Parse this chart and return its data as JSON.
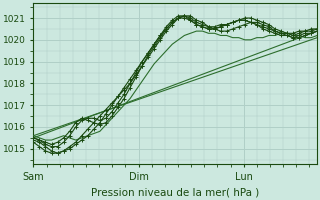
{
  "title": "Pression niveau de la mer( hPa )",
  "ylabel_ticks": [
    1015,
    1016,
    1017,
    1018,
    1019,
    1020,
    1021
  ],
  "ylim": [
    1014.3,
    1021.7
  ],
  "bg_color": "#cce8df",
  "grid_color": "#b0cfc7",
  "line_color": "#2d6e2d",
  "dark_line_color": "#1a4a10",
  "text_color": "#1a4a10",
  "day_labels": [
    "Sam",
    "Dim",
    "Lun"
  ],
  "day_positions": [
    0.0,
    1.0,
    2.0
  ],
  "xlim": [
    0.0,
    2.7
  ],
  "n_points": 48,
  "series": [
    [
      1015.6,
      1015.5,
      1015.4,
      1015.4,
      1015.5,
      1015.6,
      1015.5,
      1015.4,
      1015.5,
      1015.6,
      1015.7,
      1015.8,
      1016.1,
      1016.4,
      1016.7,
      1017.0,
      1017.3,
      1017.7,
      1018.1,
      1018.5,
      1018.9,
      1019.2,
      1019.5,
      1019.8,
      1020.0,
      1020.2,
      1020.3,
      1020.4,
      1020.4,
      1020.3,
      1020.3,
      1020.2,
      1020.2,
      1020.1,
      1020.1,
      1020.0,
      1020.0,
      1020.1,
      1020.1,
      1020.2,
      1020.2,
      1020.3,
      1020.3,
      1020.2,
      1020.2,
      1020.1,
      1020.1,
      1020.2
    ],
    [
      1015.4,
      1015.3,
      1015.1,
      1014.9,
      1014.8,
      1014.9,
      1015.0,
      1015.2,
      1015.4,
      1015.6,
      1015.9,
      1016.2,
      1016.6,
      1017.0,
      1017.4,
      1017.8,
      1018.2,
      1018.6,
      1019.0,
      1019.4,
      1019.8,
      1020.2,
      1020.6,
      1020.9,
      1021.1,
      1021.1,
      1021.0,
      1020.8,
      1020.7,
      1020.6,
      1020.6,
      1020.7,
      1020.7,
      1020.8,
      1020.9,
      1021.0,
      1021.0,
      1020.9,
      1020.8,
      1020.7,
      1020.5,
      1020.4,
      1020.3,
      1020.3,
      1020.4,
      1020.4,
      1020.5,
      1020.5
    ],
    [
      1015.3,
      1015.1,
      1014.9,
      1014.8,
      1014.8,
      1014.9,
      1015.1,
      1015.3,
      1015.6,
      1015.9,
      1016.2,
      1016.5,
      1016.8,
      1017.1,
      1017.4,
      1017.7,
      1018.0,
      1018.4,
      1018.8,
      1019.2,
      1019.6,
      1020.0,
      1020.4,
      1020.7,
      1021.0,
      1021.1,
      1021.1,
      1020.9,
      1020.8,
      1020.6,
      1020.5,
      1020.4,
      1020.4,
      1020.5,
      1020.6,
      1020.7,
      1020.8,
      1020.8,
      1020.7,
      1020.6,
      1020.4,
      1020.3,
      1020.2,
      1020.1,
      1020.1,
      1020.2,
      1020.3,
      1020.4
    ],
    [
      1015.5,
      1015.4,
      1015.3,
      1015.2,
      1015.3,
      1015.5,
      1015.8,
      1016.2,
      1016.4,
      1016.3,
      1016.2,
      1016.1,
      1016.2,
      1016.5,
      1016.9,
      1017.3,
      1017.8,
      1018.3,
      1018.8,
      1019.3,
      1019.7,
      1020.1,
      1020.5,
      1020.8,
      1021.0,
      1021.1,
      1020.9,
      1020.7,
      1020.6,
      1020.5,
      1020.5,
      1020.6,
      1020.7,
      1020.8,
      1020.9,
      1020.9,
      1020.8,
      1020.7,
      1020.6,
      1020.5,
      1020.4,
      1020.3,
      1020.3,
      1020.2,
      1020.3,
      1020.4,
      1020.4,
      1020.5
    ],
    [
      1015.5,
      1015.4,
      1015.2,
      1015.1,
      1015.1,
      1015.3,
      1015.6,
      1016.0,
      1016.3,
      1016.4,
      1016.4,
      1016.3,
      1016.4,
      1016.7,
      1017.1,
      1017.5,
      1018.0,
      1018.5,
      1019.0,
      1019.4,
      1019.8,
      1020.2,
      1020.5,
      1020.8,
      1021.0,
      1021.0,
      1020.9,
      1020.7,
      1020.6,
      1020.5,
      1020.5,
      1020.6,
      1020.7,
      1020.8,
      1020.9,
      1020.9,
      1020.8,
      1020.7,
      1020.5,
      1020.4,
      1020.3,
      1020.2,
      1020.2,
      1020.1,
      1020.2,
      1020.3,
      1020.3,
      1020.4
    ]
  ],
  "marker_series": [
    1,
    2,
    3,
    4
  ],
  "straight_lines": [
    {
      "x0": 0.0,
      "y0": 1015.6,
      "x1": 2.7,
      "y1": 1020.1
    },
    {
      "x0": 0.0,
      "y0": 1015.5,
      "x1": 2.7,
      "y1": 1020.4
    }
  ]
}
